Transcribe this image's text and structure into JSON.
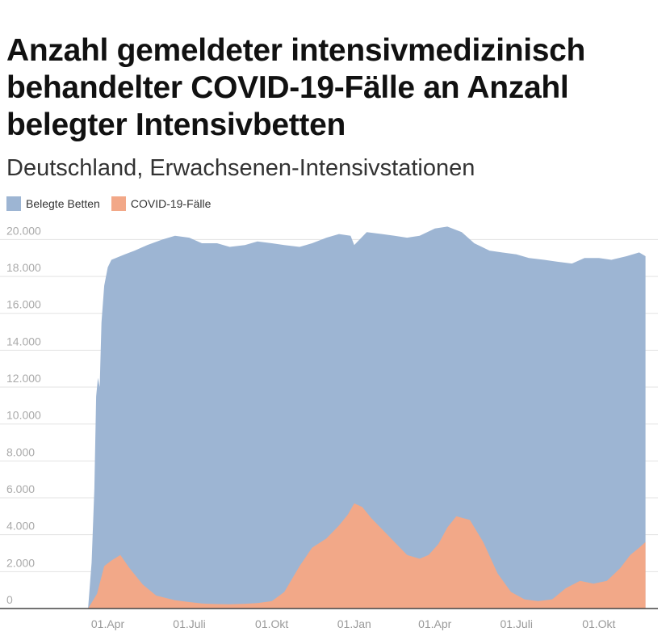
{
  "chart_data": {
    "type": "area",
    "title": "Anzahl gemeldeter intensivmedizinisch behandelter COVID-19-Fälle an Anzahl belegter Intensivbetten",
    "subtitle": "Deutschland, Erwachsenen-Intensivstationen",
    "ylim": [
      0,
      20500
    ],
    "yticks": [
      "0",
      "2.000",
      "4.000",
      "6.000",
      "8.000",
      "10.000",
      "12.000",
      "14.000",
      "16.000",
      "18.000",
      "20.000"
    ],
    "ytick_values": [
      0,
      2000,
      4000,
      6000,
      8000,
      10000,
      12000,
      14000,
      16000,
      18000,
      20000
    ],
    "xlim": [
      "2020-02-20",
      "2021-11-26"
    ],
    "xticks": [
      "01.Apr",
      "01.Juli",
      "01.Okt",
      "01.Jan",
      "01.Apr",
      "01.Juli",
      "01.Okt"
    ],
    "xtick_dates": [
      "2020-04-01",
      "2020-07-01",
      "2020-10-01",
      "2021-01-01",
      "2021-04-01",
      "2021-07-01",
      "2021-10-01"
    ],
    "grid": true,
    "legend_position": "top-left",
    "series": [
      {
        "name": "Belegte Betten",
        "color": "#9db5d3",
        "x": [
          "2020-03-10",
          "2020-03-14",
          "2020-03-17",
          "2020-03-19",
          "2020-03-21",
          "2020-03-23",
          "2020-03-25",
          "2020-03-28",
          "2020-04-01",
          "2020-04-05",
          "2020-04-10",
          "2020-04-20",
          "2020-05-01",
          "2020-05-15",
          "2020-06-01",
          "2020-06-15",
          "2020-07-01",
          "2020-07-15",
          "2020-08-01",
          "2020-08-15",
          "2020-09-01",
          "2020-09-15",
          "2020-10-01",
          "2020-10-15",
          "2020-11-01",
          "2020-11-15",
          "2020-12-01",
          "2020-12-15",
          "2020-12-28",
          "2021-01-01",
          "2021-01-15",
          "2021-02-01",
          "2021-02-15",
          "2021-03-01",
          "2021-03-15",
          "2021-04-01",
          "2021-04-15",
          "2021-05-01",
          "2021-05-15",
          "2021-06-01",
          "2021-06-15",
          "2021-07-01",
          "2021-07-15",
          "2021-08-01",
          "2021-08-15",
          "2021-09-01",
          "2021-09-15",
          "2021-10-01",
          "2021-10-15",
          "2021-11-01",
          "2021-11-15",
          "2021-11-22"
        ],
        "y": [
          0,
          2500,
          6500,
          11500,
          12500,
          12000,
          15500,
          17500,
          18500,
          18900,
          19000,
          19200,
          19400,
          19700,
          20000,
          20200,
          20100,
          19800,
          19800,
          19600,
          19700,
          19900,
          19800,
          19700,
          19600,
          19800,
          20100,
          20300,
          20200,
          19700,
          20400,
          20300,
          20200,
          20100,
          20200,
          20600,
          20700,
          20400,
          19800,
          19400,
          19300,
          19200,
          19000,
          18900,
          18800,
          18700,
          19000,
          19000,
          18900,
          19100,
          19300,
          19100
        ]
      },
      {
        "name": "COVID-19-Fälle",
        "color": "#f2a888",
        "x": [
          "2020-03-10",
          "2020-03-20",
          "2020-03-28",
          "2020-04-05",
          "2020-04-15",
          "2020-04-25",
          "2020-05-10",
          "2020-05-25",
          "2020-06-15",
          "2020-07-01",
          "2020-07-15",
          "2020-08-01",
          "2020-08-15",
          "2020-09-01",
          "2020-09-15",
          "2020-10-01",
          "2020-10-15",
          "2020-11-01",
          "2020-11-15",
          "2020-12-01",
          "2020-12-15",
          "2020-12-25",
          "2021-01-01",
          "2021-01-10",
          "2021-01-20",
          "2021-02-01",
          "2021-02-15",
          "2021-03-01",
          "2021-03-15",
          "2021-03-25",
          "2021-04-05",
          "2021-04-15",
          "2021-04-25",
          "2021-05-10",
          "2021-05-25",
          "2021-06-10",
          "2021-06-25",
          "2021-07-10",
          "2021-07-25",
          "2021-08-10",
          "2021-08-25",
          "2021-09-10",
          "2021-09-25",
          "2021-10-10",
          "2021-10-25",
          "2021-11-05",
          "2021-11-15",
          "2021-11-22"
        ],
        "y": [
          0,
          800,
          2300,
          2600,
          2900,
          2200,
          1300,
          700,
          450,
          350,
          270,
          240,
          230,
          260,
          300,
          400,
          900,
          2300,
          3300,
          3800,
          4500,
          5100,
          5700,
          5500,
          4900,
          4300,
          3600,
          2900,
          2700,
          2900,
          3500,
          4400,
          5000,
          4800,
          3600,
          1900,
          900,
          500,
          400,
          500,
          1100,
          1500,
          1350,
          1500,
          2200,
          2900,
          3300,
          3600
        ]
      }
    ]
  }
}
